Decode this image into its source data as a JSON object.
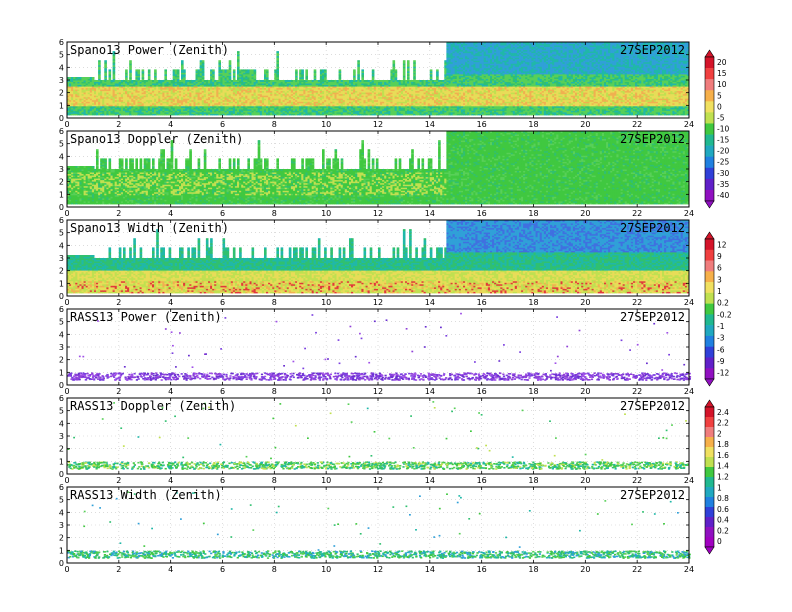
{
  "chart_data": [
    {
      "type": "heatmap",
      "title": "Spano13 Power (Zenith)",
      "date": "27SEP2012",
      "xlim": [
        0,
        24
      ],
      "ylim": [
        0,
        6
      ],
      "xticks": [
        "0",
        "2",
        "4",
        "6",
        "8",
        "10",
        "12",
        "14",
        "16",
        "18",
        "20",
        "22",
        "24"
      ],
      "yticks": [
        "0",
        "1",
        "2",
        "3",
        "4",
        "5",
        "6"
      ],
      "colorbar": {
        "labels": [
          "20",
          "15",
          "10",
          "5",
          "0",
          "-5",
          "-10",
          "-15",
          "-20",
          "-25",
          "-30",
          "-35",
          "-40"
        ]
      }
    },
    {
      "type": "heatmap",
      "title": "Spano13 Doppler (Zenith)",
      "date": "27SEP2012",
      "xlim": [
        0,
        24
      ],
      "ylim": [
        0,
        6
      ],
      "xticks": [
        "0",
        "2",
        "4",
        "6",
        "8",
        "10",
        "12",
        "14",
        "16",
        "18",
        "20",
        "22",
        "24"
      ],
      "yticks": [
        "0",
        "1",
        "2",
        "3",
        "4",
        "5",
        "6"
      ]
    },
    {
      "type": "heatmap",
      "title": "Spano13 Width (Zenith)",
      "date": "27SEP2012",
      "xlim": [
        0,
        24
      ],
      "ylim": [
        0,
        6
      ],
      "xticks": [
        "0",
        "2",
        "4",
        "6",
        "8",
        "10",
        "12",
        "14",
        "16",
        "18",
        "20",
        "22",
        "24"
      ],
      "yticks": [
        "0",
        "1",
        "2",
        "3",
        "4",
        "5",
        "6"
      ],
      "colorbar": {
        "labels": [
          "12",
          "9",
          "6",
          "3",
          "1",
          "0.2",
          "-0.2",
          "-1",
          "-3",
          "-6",
          "-9",
          "-12"
        ]
      }
    },
    {
      "type": "heatmap",
      "title": "RASS13 Power (Zenith)",
      "date": "27SEP2012",
      "xlim": [
        0,
        24
      ],
      "ylim": [
        0,
        6
      ],
      "xticks": [
        "0",
        "2",
        "4",
        "6",
        "8",
        "10",
        "12",
        "14",
        "16",
        "18",
        "20",
        "22",
        "24"
      ],
      "yticks": [
        "0",
        "1",
        "2",
        "3",
        "4",
        "5",
        "6"
      ]
    },
    {
      "type": "heatmap",
      "title": "RASS13 Doppler (Zenith)",
      "date": "27SEP2012",
      "xlim": [
        0,
        24
      ],
      "ylim": [
        0,
        6
      ],
      "xticks": [
        "0",
        "2",
        "4",
        "6",
        "8",
        "10",
        "12",
        "14",
        "16",
        "18",
        "20",
        "22",
        "24"
      ],
      "yticks": [
        "0",
        "1",
        "2",
        "3",
        "4",
        "5",
        "6"
      ],
      "colorbar": {
        "labels": [
          "2.4",
          "2.2",
          "2",
          "1.8",
          "1.6",
          "1.4",
          "1.2",
          "1",
          "0.8",
          "0.6",
          "0.4",
          "0.2",
          "0"
        ]
      }
    },
    {
      "type": "heatmap",
      "title": "RASS13 Width (Zenith)",
      "date": "27SEP2012",
      "xlim": [
        0,
        24
      ],
      "ylim": [
        0,
        6
      ],
      "xticks": [
        "0",
        "2",
        "4",
        "6",
        "8",
        "10",
        "12",
        "14",
        "16",
        "18",
        "20",
        "22",
        "24"
      ],
      "yticks": [
        "0",
        "1",
        "2",
        "3",
        "4",
        "5",
        "6"
      ]
    }
  ],
  "colors": {
    "spano_power": [
      "#d4142a",
      "#f04040",
      "#f07d7d",
      "#f6b04a",
      "#f0e060",
      "#c0e050",
      "#40c840",
      "#20b890",
      "#20a8c0",
      "#2080e0",
      "#3040d8",
      "#6020c8",
      "#9010c0"
    ],
    "spano_width": [
      "#d4142a",
      "#f04040",
      "#f07d7d",
      "#f6b04a",
      "#f0e060",
      "#c0e050",
      "#40c840",
      "#20b890",
      "#20a8c0",
      "#2080e0",
      "#3040d8",
      "#6020c8",
      "#9010c0"
    ],
    "rass_doppler": [
      "#d4142a",
      "#f04040",
      "#f07d7d",
      "#f6b04a",
      "#f0e060",
      "#c0e050",
      "#40c840",
      "#20b890",
      "#20a8c0",
      "#2080e0",
      "#3040d8",
      "#6020c8",
      "#9010c0",
      "#a000c0"
    ]
  }
}
